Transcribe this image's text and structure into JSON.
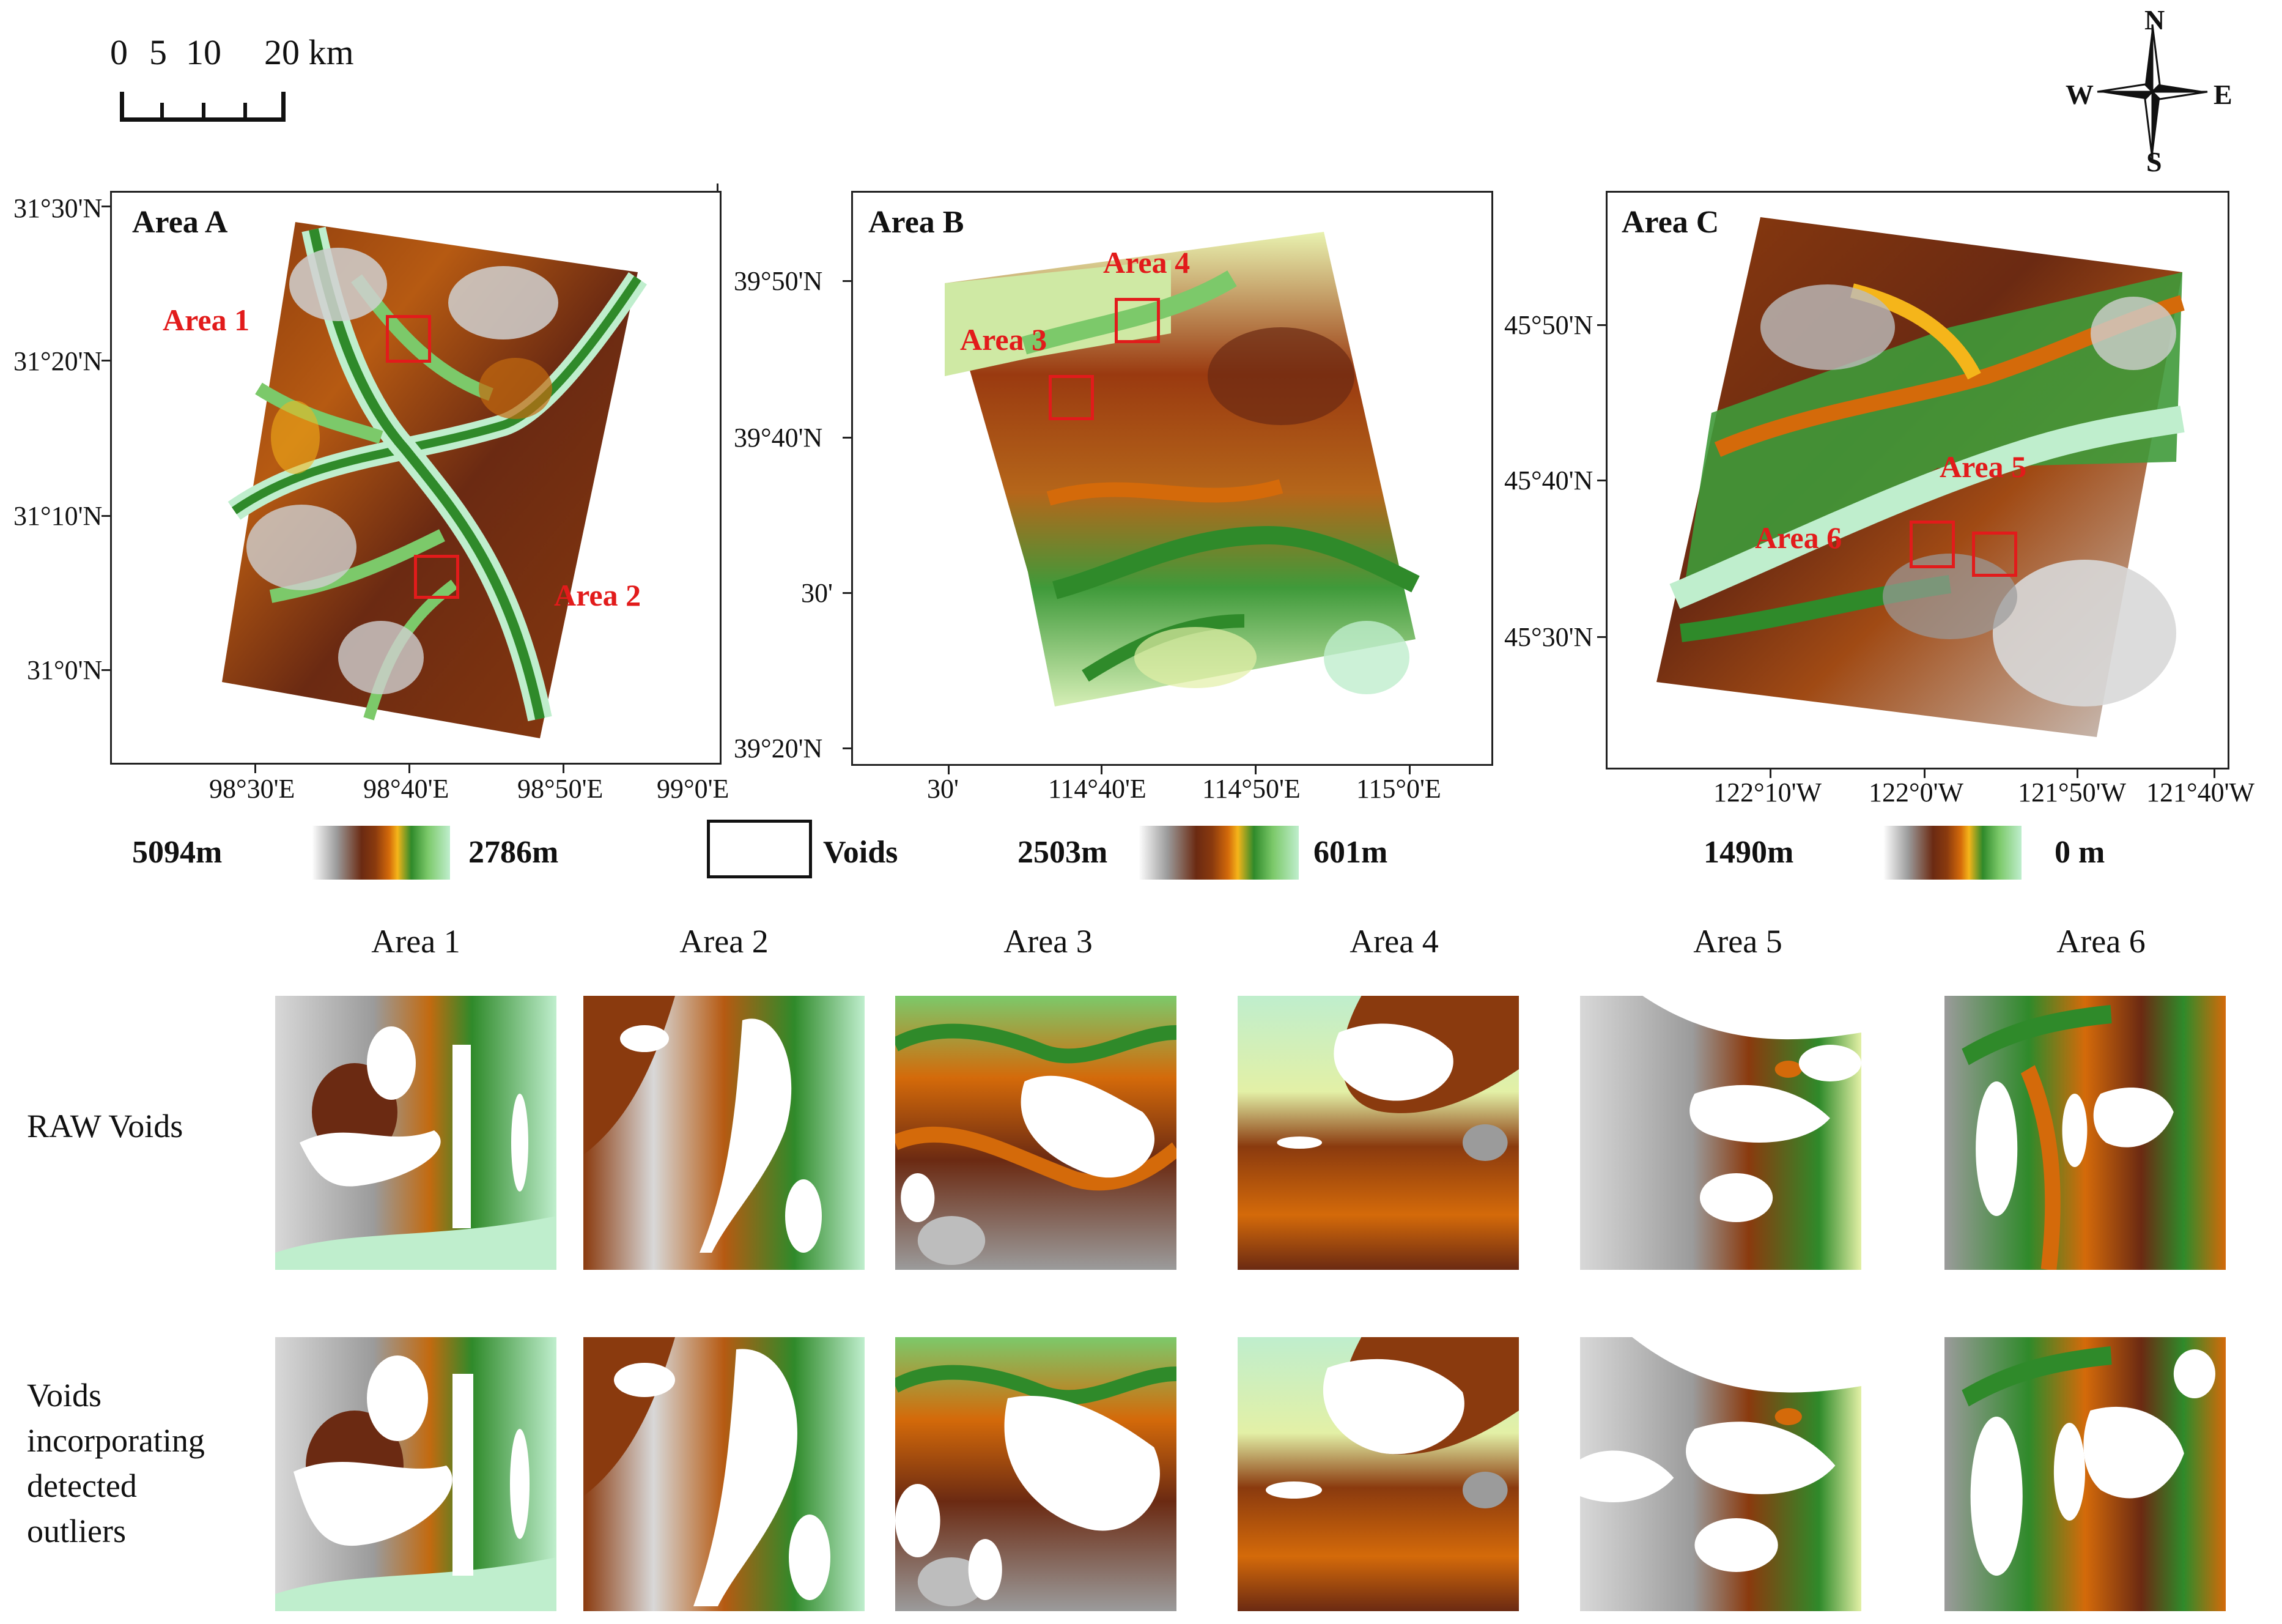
{
  "scale_bar": {
    "labels": [
      "0",
      "5",
      "10",
      "20 km"
    ]
  },
  "north_arrow": {
    "n": "N",
    "s": "S",
    "e": "E",
    "w": "W"
  },
  "maps": [
    {
      "title": "Area A",
      "lat_ticks": [
        "31°30'N",
        "31°20'N",
        "31°10'N",
        "31°0'N"
      ],
      "lon_ticks": [
        "98°30'E",
        "98°40'E",
        "98°50'E",
        "99°0'E"
      ],
      "subareas": [
        "Area 1",
        "Area 2"
      ]
    },
    {
      "title": "Area B",
      "lat_ticks": [
        "39°50'N",
        "39°40'N",
        "30'",
        "39°20'N"
      ],
      "lon_ticks": [
        "30'",
        "114°40'E",
        "114°50'E",
        "115°0'E"
      ],
      "subareas": [
        "Area 3",
        "Area 4"
      ]
    },
    {
      "title": "Area C",
      "lat_ticks": [
        "45°50'N",
        "45°40'N",
        "45°30'N"
      ],
      "lon_ticks": [
        "122°10'W",
        "122°0'W",
        "121°50'W",
        "121°40'W"
      ],
      "subareas": [
        "Area 5",
        "Area 6"
      ]
    }
  ],
  "legend": {
    "a_max": "5094m",
    "a_min": "2786m",
    "voids": "Voids",
    "b_max": "2503m",
    "b_min": "601m",
    "c_max": "1490m",
    "c_min": "0 m"
  },
  "columns": [
    "Area 1",
    "Area 2",
    "Area 3",
    "Area 4",
    "Area 5",
    "Area 6"
  ],
  "rows": {
    "raw": "RAW Voids",
    "detected": [
      "Voids",
      "incorporating",
      "detected",
      "outliers"
    ]
  },
  "colors": {
    "frame": "#222222",
    "annotation_red": "#e21b1b",
    "high_white": "#ffffff",
    "gray": "#9b9b9b",
    "dark_brown": "#6b2a12",
    "orange": "#d46a0a",
    "yellow": "#f5b51a",
    "green": "#2f8a2a",
    "light_green": "#7cc96a",
    "low_cyan": "#bfeecd"
  }
}
